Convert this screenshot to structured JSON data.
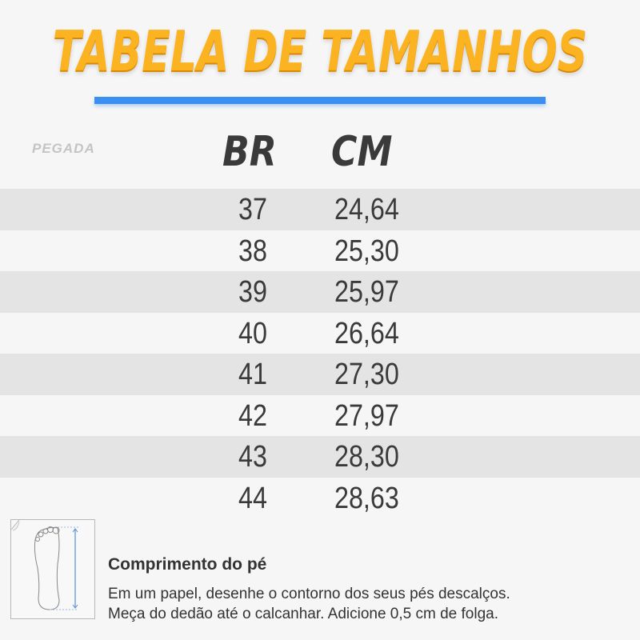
{
  "title": "TABELA DE TAMANHOS",
  "brand_logo": "PEGADA",
  "colors": {
    "title": "#fbb322",
    "rule": "#3a8ff0",
    "stripe": "#e4e4e4"
  },
  "table": {
    "headers": [
      "BR",
      "CM"
    ],
    "rows": [
      [
        "37",
        "24,64"
      ],
      [
        "38",
        "25,30"
      ],
      [
        "39",
        "25,97"
      ],
      [
        "40",
        "26,64"
      ],
      [
        "41",
        "27,30"
      ],
      [
        "42",
        "27,97"
      ],
      [
        "43",
        "28,30"
      ],
      [
        "44",
        "28,63"
      ]
    ]
  },
  "howto": {
    "icon": "foot-measure-icon",
    "title": "Comprimento do pé",
    "lines": [
      "Em um papel, desenhe o contorno dos seus pés descalços.",
      "Meça do dedão até o calcanhar. Adicione 0,5 cm de folga."
    ]
  }
}
